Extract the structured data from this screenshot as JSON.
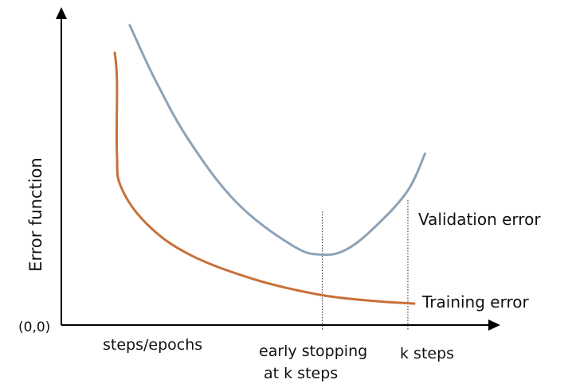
{
  "chart_data": {
    "type": "line",
    "title": "",
    "xlabel": "steps/epochs",
    "ylabel": "Error function",
    "origin_label": "(0,0)",
    "grid": false,
    "legend": "none",
    "series": [
      {
        "name": "Validation error",
        "color": "#8da2b6",
        "points": [
          {
            "x": 0.16,
            "y": 0.98
          },
          {
            "x": 0.22,
            "y": 0.8
          },
          {
            "x": 0.3,
            "y": 0.6
          },
          {
            "x": 0.41,
            "y": 0.4
          },
          {
            "x": 0.54,
            "y": 0.26
          },
          {
            "x": 0.61,
            "y": 0.23
          },
          {
            "x": 0.67,
            "y": 0.25
          },
          {
            "x": 0.74,
            "y": 0.33
          },
          {
            "x": 0.81,
            "y": 0.44
          },
          {
            "x": 0.85,
            "y": 0.56
          }
        ]
      },
      {
        "name": "Training error",
        "color": "#c8703a",
        "points": [
          {
            "x": 0.125,
            "y": 0.89
          },
          {
            "x": 0.13,
            "y": 0.8
          },
          {
            "x": 0.13,
            "y": 0.56
          },
          {
            "x": 0.14,
            "y": 0.45
          },
          {
            "x": 0.2,
            "y": 0.33
          },
          {
            "x": 0.3,
            "y": 0.23
          },
          {
            "x": 0.45,
            "y": 0.15
          },
          {
            "x": 0.6,
            "y": 0.1
          },
          {
            "x": 0.72,
            "y": 0.08
          },
          {
            "x": 0.825,
            "y": 0.07
          }
        ]
      }
    ],
    "markers": [
      {
        "label_lines": [
          "early stopping",
          "at k steps"
        ],
        "x": 0.61,
        "color": "#222222"
      },
      {
        "label_lines": [
          "k steps"
        ],
        "x": 0.81,
        "color": "#222222"
      }
    ]
  }
}
